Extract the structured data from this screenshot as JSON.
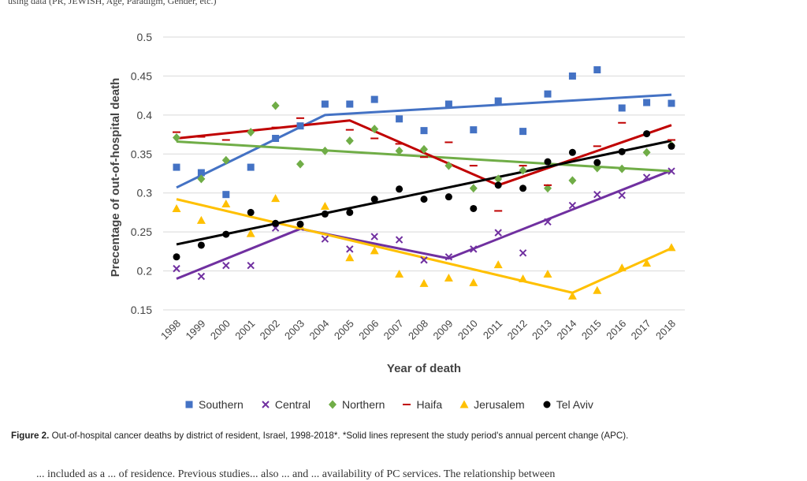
{
  "header_text": "using data (PR, JEWISH, Age, Paradigm, Gender, etc.)",
  "caption": {
    "label": "Figure 2.",
    "text": "Out-of-hospital cancer deaths by district of resident, Israel, 1998-2018*. *Solid lines represent the study period's annual percent change (APC)."
  },
  "footer_text": "... included as a ... of residence. Previous studies... also ... and ... availability of PC services. The relationship between",
  "colors": {
    "southern": "#4472C4",
    "central": "#7030A0",
    "northern": "#70AD47",
    "haifa": "#C00000",
    "jerusalem": "#FFC000",
    "telaviv": "#000000"
  },
  "chart_data": {
    "type": "scatter",
    "title": "",
    "xlabel": "Year of death",
    "ylabel": "Precentage of out-of-hospital death",
    "ylim": [
      0.15,
      0.5
    ],
    "yticks": [
      "0.15",
      "0.2",
      "0.25",
      "0.3",
      "0.35",
      "0.4",
      "0.45",
      "0.5"
    ],
    "grid": true,
    "legend_position": "bottom",
    "x": [
      1998,
      1999,
      2000,
      2001,
      2002,
      2003,
      2004,
      2005,
      2006,
      2007,
      2008,
      2009,
      2010,
      2011,
      2012,
      2013,
      2014,
      2015,
      2016,
      2017,
      2018
    ],
    "series": [
      {
        "name": "Southern",
        "color": "#4472C4",
        "marker": "square",
        "values": [
          0.333,
          0.326,
          0.298,
          0.333,
          0.37,
          0.386,
          0.414,
          0.414,
          0.42,
          0.395,
          0.38,
          0.414,
          0.381,
          0.418,
          0.379,
          0.427,
          0.45,
          0.458,
          0.409,
          0.416,
          0.415
        ],
        "trend": [
          [
            1998,
            0.307
          ],
          [
            2004,
            0.4
          ],
          [
            2018,
            0.426
          ]
        ]
      },
      {
        "name": "Central",
        "color": "#7030A0",
        "marker": "x",
        "values": [
          0.203,
          0.193,
          0.207,
          0.207,
          0.255,
          0.256,
          0.241,
          0.228,
          0.244,
          0.24,
          0.214,
          0.218,
          0.228,
          0.249,
          0.223,
          0.263,
          0.284,
          0.298,
          0.297,
          0.32,
          0.328
        ],
        "trend": [
          [
            1998,
            0.19
          ],
          [
            2003,
            0.254
          ],
          [
            2009,
            0.216
          ],
          [
            2018,
            0.329
          ]
        ]
      },
      {
        "name": "Northern",
        "color": "#70AD47",
        "marker": "diamond",
        "values": [
          0.371,
          0.318,
          0.342,
          0.378,
          0.412,
          0.337,
          0.354,
          0.367,
          0.382,
          0.354,
          0.356,
          0.335,
          0.306,
          0.318,
          0.329,
          0.306,
          0.316,
          0.332,
          0.331,
          0.352,
          0.361
        ],
        "trend": [
          [
            1998,
            0.366
          ],
          [
            2018,
            0.328
          ]
        ]
      },
      {
        "name": "Haifa",
        "color": "#C00000",
        "marker": "dash",
        "values": [
          0.378,
          0.372,
          0.368,
          null,
          0.384,
          0.396,
          null,
          0.381,
          0.37,
          0.363,
          0.346,
          0.365,
          0.335,
          0.277,
          0.335,
          0.31,
          null,
          0.36,
          0.39,
          null,
          0.368
        ],
        "trend": [
          [
            1998,
            0.37
          ],
          [
            2005,
            0.393
          ],
          [
            2011,
            0.31
          ],
          [
            2018,
            0.387
          ]
        ]
      },
      {
        "name": "Jerusalem",
        "color": "#FFC000",
        "marker": "triangle",
        "values": [
          0.28,
          0.265,
          0.286,
          0.248,
          0.293,
          0.258,
          0.283,
          0.217,
          0.226,
          0.196,
          0.184,
          0.191,
          0.185,
          0.208,
          0.19,
          0.196,
          0.168,
          0.175,
          0.204,
          0.21,
          0.23
        ],
        "trend": [
          [
            1998,
            0.292
          ],
          [
            2014,
            0.172
          ],
          [
            2018,
            0.229
          ]
        ]
      },
      {
        "name": "Tel Aviv",
        "color": "#000000",
        "marker": "circle",
        "values": [
          0.218,
          0.233,
          0.247,
          0.275,
          0.261,
          0.26,
          0.273,
          0.275,
          0.292,
          0.305,
          0.292,
          0.295,
          0.28,
          0.31,
          0.306,
          0.34,
          0.352,
          0.339,
          0.353,
          0.376,
          0.36
        ],
        "trend": [
          [
            1998,
            0.234
          ],
          [
            2018,
            0.367
          ]
        ]
      }
    ]
  }
}
